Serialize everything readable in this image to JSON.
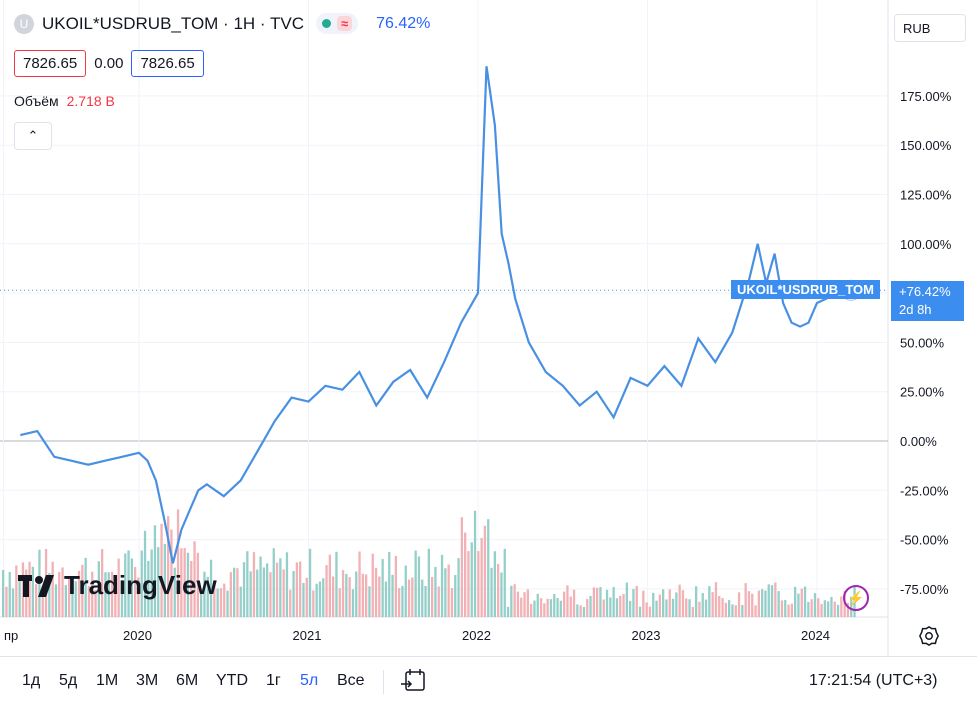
{
  "legend": {
    "badge": "U",
    "title": "UKOIL*USDRUB_TOM · 1H · TVC",
    "change_pct": "76.42%",
    "open_price": "7826.65",
    "change": "0.00",
    "close_price": "7826.65",
    "volume_label": "Объём",
    "volume_value": "2.718 B"
  },
  "currency_button": "RUB",
  "price_tag": {
    "symbol": "UKOIL*USDRUB_TOM",
    "pct": "+76.42%",
    "countdown": "2d 8h"
  },
  "watermark": "TradingView",
  "range_buttons": [
    "1д",
    "5д",
    "1М",
    "3М",
    "6М",
    "YTD",
    "1г",
    "5л",
    "Все"
  ],
  "active_range": "5л",
  "clock": "17:21:54 (UTC+3)",
  "colors": {
    "line": "#4a90e2",
    "vol_up": "#82c7bf",
    "vol_down": "#f0a3a8",
    "accent": "#2962ff"
  },
  "chart_data": {
    "type": "line",
    "x_labels": [
      "пр",
      "2020",
      "2021",
      "2022",
      "2023",
      "2024"
    ],
    "y_ticks": [
      "175.00%",
      "150.00%",
      "125.00%",
      "100.00%",
      "75.00%",
      "50.00%",
      "25.00%",
      "0.00%",
      "-25.00%",
      "-50.00%",
      "-75.00%"
    ],
    "ylim": [
      -85,
      195
    ],
    "x": [
      2019.3,
      2019.4,
      2019.5,
      2019.6,
      2019.7,
      2019.8,
      2019.9,
      2020.0,
      2020.05,
      2020.1,
      2020.15,
      2020.2,
      2020.25,
      2020.3,
      2020.35,
      2020.4,
      2020.5,
      2020.6,
      2020.7,
      2020.8,
      2020.9,
      2021.0,
      2021.1,
      2021.2,
      2021.3,
      2021.4,
      2021.5,
      2021.6,
      2021.7,
      2021.8,
      2021.9,
      2022.0,
      2022.05,
      2022.1,
      2022.14,
      2022.18,
      2022.22,
      2022.3,
      2022.4,
      2022.5,
      2022.6,
      2022.7,
      2022.8,
      2022.9,
      2023.0,
      2023.1,
      2023.2,
      2023.3,
      2023.4,
      2023.5,
      2023.6,
      2023.65,
      2023.7,
      2023.75,
      2023.8,
      2023.85,
      2023.9,
      2023.95,
      2024.0,
      2024.05,
      2024.12,
      2024.2
    ],
    "values": [
      3,
      5,
      -8,
      -10,
      -12,
      -10,
      -8,
      -6,
      -10,
      -20,
      -40,
      -62,
      -45,
      -35,
      -25,
      -22,
      -28,
      -20,
      -5,
      10,
      22,
      20,
      28,
      26,
      35,
      18,
      30,
      36,
      22,
      40,
      60,
      75,
      190,
      160,
      105,
      90,
      72,
      50,
      35,
      28,
      18,
      25,
      12,
      32,
      28,
      38,
      28,
      52,
      40,
      55,
      82,
      100,
      80,
      95,
      70,
      60,
      58,
      60,
      70,
      72,
      75,
      76.42
    ],
    "volume_pct": "volume bars shown as histogram at bottom"
  }
}
